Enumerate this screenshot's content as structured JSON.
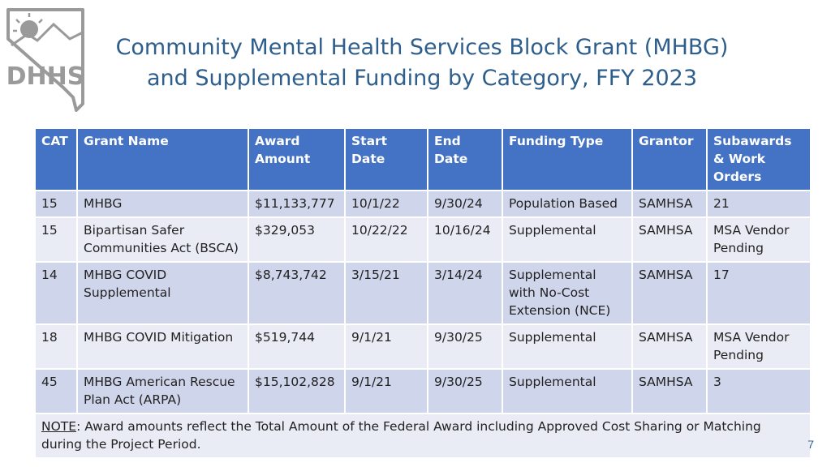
{
  "logo": {
    "text": "DHHS"
  },
  "title": {
    "line1": "Community Mental Health Services Block Grant (MHBG)",
    "line2": "and Supplemental Funding by Category, FFY 2023"
  },
  "table": {
    "headers": [
      "CAT",
      "Grant Name",
      "Award Amount",
      "Start Date",
      "End Date",
      "Funding Type",
      "Grantor",
      "Subawards & Work Orders"
    ],
    "rows": [
      [
        "15",
        "MHBG",
        "$11,133,777",
        "10/1/22",
        "9/30/24",
        "Population Based",
        "SAMHSA",
        "21"
      ],
      [
        "15",
        "Bipartisan Safer Communities Act (BSCA)",
        "$329,053",
        "10/22/22",
        "10/16/24",
        "Supplemental",
        "SAMHSA",
        "MSA Vendor Pending"
      ],
      [
        "14",
        "MHBG COVID Supplemental",
        "$8,743,742",
        "3/15/21",
        "3/14/24",
        "Supplemental with No-Cost Extension (NCE)",
        "SAMHSA",
        "17"
      ],
      [
        "18",
        "MHBG COVID Mitigation",
        "$519,744",
        "9/1/21",
        "9/30/25",
        "Supplemental",
        "SAMHSA",
        "MSA Vendor Pending"
      ],
      [
        "45",
        "MHBG American Rescue Plan Act (ARPA)",
        "$15,102,828",
        "9/1/21",
        "9/30/25",
        "Supplemental",
        "SAMHSA",
        "3"
      ]
    ],
    "note_label": "NOTE",
    "note_text": ":  Award amounts reflect the Total Amount of the Federal Award including Approved Cost Sharing or Matching during the Project Period."
  },
  "page_number": "7",
  "colors": {
    "title": "#2E5E8C",
    "header_bg": "#4472C4",
    "row_dark": "#CFD5EA",
    "row_light": "#E9EBF5"
  }
}
